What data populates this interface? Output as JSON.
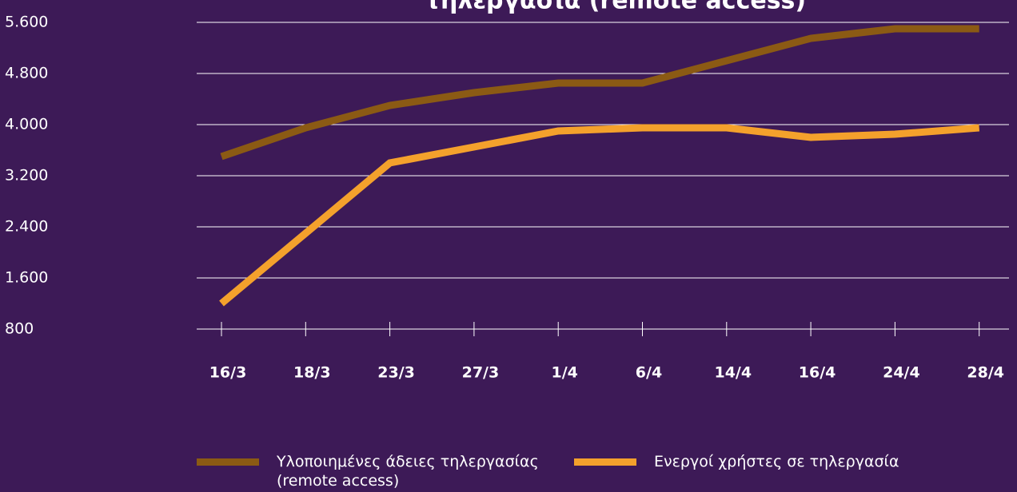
{
  "chart_data": {
    "type": "line",
    "title": "τηλεργασία (remote access)",
    "categories": [
      "16/3",
      "18/3",
      "23/3",
      "27/3",
      "1/4",
      "6/4",
      "14/4",
      "16/4",
      "24/4",
      "28/4"
    ],
    "series": [
      {
        "name": "Υλοποιημένες άδειες τηλεργασίας (remote access)",
        "color": "#8b5a14",
        "values": [
          3500,
          3950,
          4300,
          4500,
          4650,
          4650,
          5000,
          5350,
          5500,
          5500
        ]
      },
      {
        "name": "Ενεργοί χρήστες σε τηλεργασία",
        "color": "#f4a12c",
        "values": [
          1200,
          2300,
          3400,
          3650,
          3900,
          3950,
          3950,
          3800,
          3850,
          3950
        ]
      }
    ],
    "ylim": [
      800,
      5600
    ],
    "yticks": [
      800,
      {
        "value": 1600,
        "label": "1.600"
      },
      {
        "value": 2400,
        "label": "2.400"
      },
      {
        "value": 3200,
        "label": "3.200"
      },
      {
        "value": 4000,
        "label": "4.000"
      },
      {
        "value": 4800,
        "label": "4.800"
      },
      {
        "value": 5600,
        "label": "5.600"
      }
    ],
    "grid": true
  }
}
